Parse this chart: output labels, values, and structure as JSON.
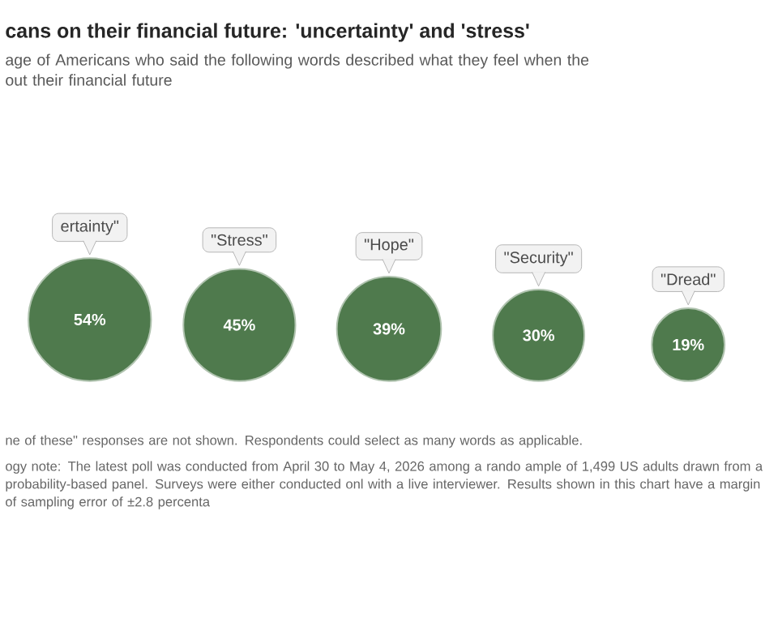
{
  "chart_data": {
    "type": "other",
    "title": "cans on their financial future: 'uncertainty' and 'stress'",
    "subtitle": "age of Americans who said the following words described what they feel when the\nout their financial future",
    "categories": [
      "ertainty\"",
      "\"Stress\"",
      "\"Hope\"",
      "\"Security\"",
      "\"Dread\""
    ],
    "values": [
      54,
      45,
      39,
      30,
      19
    ],
    "value_labels": [
      "54%",
      "45%",
      "39%",
      "30%",
      "19%"
    ],
    "color": "#4f7a4d",
    "annotations": [
      "ne of these\" responses are not shown. Respondents could select as many words as applicable.",
      "ogy note: The latest poll was conducted from April 30 to May 4, 2026 among a rando ample of 1,499 US adults drawn from a probability-based panel. Surveys were either conducted onl with a live interviewer. Results shown in this chart have a margin of sampling error of ±2.8 percenta"
    ]
  }
}
